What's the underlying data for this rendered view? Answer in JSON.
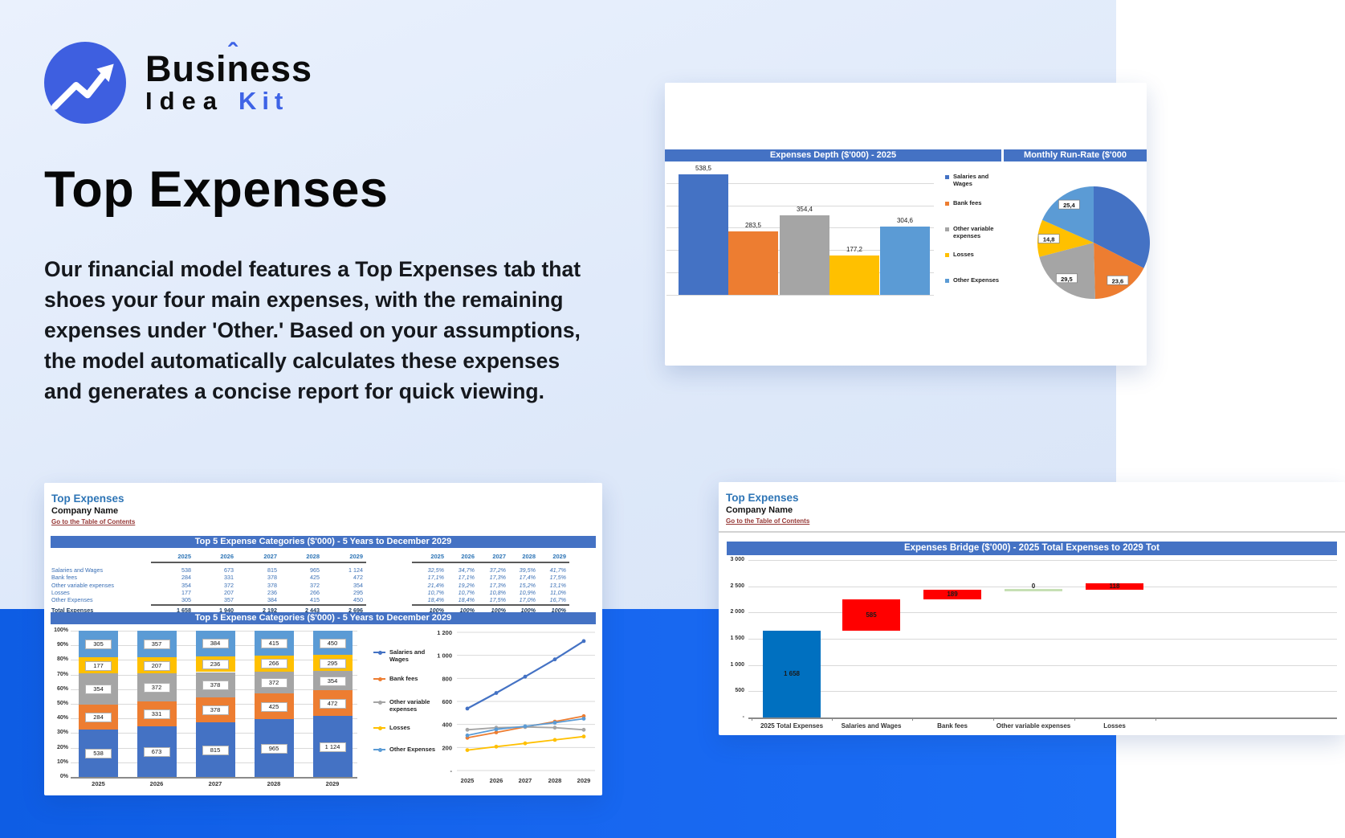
{
  "logo": {
    "brand_top": "Business",
    "caret": "ˆ",
    "brand_idea": "Idea",
    "brand_kit": "Kit"
  },
  "hero": {
    "title": "Top Expenses",
    "description": "Our financial model features a Top Expenses tab that shoes your four main expenses, with the remaining expenses under 'Other.' Based on your assumptions, the model automatically calculates these expenses and generates a concise report for quick viewing."
  },
  "colors": {
    "blue": "#4472C4",
    "orange": "#ED7D31",
    "gray": "#A5A5A5",
    "yellow": "#FFC000",
    "light_blue": "#5B9BD5",
    "red": "#FF0000",
    "bridge_blue": "#0070C0",
    "bridge_green": "#C6E0B4",
    "header_bar": "#4472C4",
    "accent_brand": "#3e63e6",
    "strip_blue": "#1766ef",
    "link_maroon": "#953735"
  },
  "cards": {
    "depth": {
      "title_left": "Expenses Depth ($'000) - 2025",
      "title_right": "Monthly Run-Rate ($'000"
    },
    "report": {
      "sheet_title": "Top Expenses",
      "company": "Company Name",
      "link": "Go to the Table of Contents",
      "table_title": "Top 5 Expense Categories ($'000) - 5 Years to December 2029",
      "chart_title": "Top 5 Expense Categories ($'000) - 5 Years to December 2029",
      "years": [
        "2025",
        "2026",
        "2027",
        "2028",
        "2029"
      ],
      "table": {
        "rows": [
          {
            "label": "Salaries and Wages",
            "values": [
              "538",
              "673",
              "815",
              "965",
              "1 124"
            ],
            "pct": [
              "32,5%",
              "34,7%",
              "37,2%",
              "39,5%",
              "41,7%"
            ]
          },
          {
            "label": "Bank fees",
            "values": [
              "284",
              "331",
              "378",
              "425",
              "472"
            ],
            "pct": [
              "17,1%",
              "17,1%",
              "17,3%",
              "17,4%",
              "17,5%"
            ]
          },
          {
            "label": "Other variable expenses",
            "values": [
              "354",
              "372",
              "378",
              "372",
              "354"
            ],
            "pct": [
              "21,4%",
              "19,2%",
              "17,3%",
              "15,2%",
              "13,1%"
            ]
          },
          {
            "label": "Losses",
            "values": [
              "177",
              "207",
              "236",
              "266",
              "295"
            ],
            "pct": [
              "10,7%",
              "10,7%",
              "10,8%",
              "10,9%",
              "11,0%"
            ]
          },
          {
            "label": "Other Expenses",
            "values": [
              "305",
              "357",
              "384",
              "415",
              "450"
            ],
            "pct": [
              "18,4%",
              "18,4%",
              "17,5%",
              "17,0%",
              "16,7%"
            ]
          }
        ],
        "total": {
          "label": "Total Expenses",
          "values": [
            "1 658",
            "1 940",
            "2 192",
            "2 443",
            "2 696"
          ],
          "pct": [
            "100%",
            "100%",
            "100%",
            "100%",
            "100%"
          ]
        }
      }
    },
    "bridge": {
      "sheet_title": "Top Expenses",
      "company": "Company Name",
      "link": "Go to the Table of Contents",
      "title": "Expenses Bridge ($'000) - 2025 Total Expenses to 2029 Tot"
    }
  },
  "chart_data": [
    {
      "id": "expenses_depth",
      "type": "bar",
      "title": "Expenses Depth ($'000) - 2025",
      "categories": [
        "Salaries and Wages",
        "Bank fees",
        "Other variable expenses",
        "Losses",
        "Other Expenses"
      ],
      "values": [
        538.5,
        283.5,
        354.4,
        177.2,
        304.6
      ],
      "labels": [
        "538,5",
        "283,5",
        "354,4",
        "177,2",
        "304,6"
      ],
      "colors": [
        "#4472C4",
        "#ED7D31",
        "#A5A5A5",
        "#FFC000",
        "#5B9BD5"
      ],
      "legend": [
        "Salaries and Wages",
        "Bank fees",
        "Other variable expenses",
        "Losses",
        "Other Expenses"
      ],
      "legend_position": "right",
      "grid": true,
      "ylim": [
        0,
        600
      ],
      "grid_step": 100
    },
    {
      "id": "monthly_run_rate",
      "type": "pie",
      "title": "Monthly Run-Rate ($'000",
      "slices": [
        {
          "name": "Salaries and Wages",
          "value": 44.9,
          "label": "",
          "color": "#4472C4"
        },
        {
          "name": "Bank fees",
          "value": 23.6,
          "label": "23,6",
          "color": "#ED7D31"
        },
        {
          "name": "Other variable expenses",
          "value": 29.5,
          "label": "29,5",
          "color": "#A5A5A5"
        },
        {
          "name": "Losses",
          "value": 14.8,
          "label": "14,8",
          "color": "#FFC000"
        },
        {
          "name": "Other Expenses",
          "value": 25.4,
          "label": "25,4",
          "color": "#5B9BD5"
        }
      ]
    },
    {
      "id": "top5_stacked",
      "type": "bar",
      "subtype": "stacked-100pct",
      "title": "Top 5 Expense Categories ($'000) - 5 Years to December 2029",
      "categories": [
        "2025",
        "2026",
        "2027",
        "2028",
        "2029"
      ],
      "series": [
        {
          "name": "Salaries and Wages",
          "color": "#4472C4",
          "values": [
            538,
            673,
            815,
            965,
            1124
          ],
          "labels": [
            "538",
            "673",
            "815",
            "965",
            "1 124"
          ]
        },
        {
          "name": "Bank fees",
          "color": "#ED7D31",
          "values": [
            284,
            331,
            378,
            425,
            472
          ],
          "labels": [
            "284",
            "331",
            "378",
            "425",
            "472"
          ]
        },
        {
          "name": "Other variable expenses",
          "color": "#A5A5A5",
          "values": [
            354,
            372,
            378,
            372,
            354
          ],
          "labels": [
            "354",
            "372",
            "378",
            "372",
            "354"
          ]
        },
        {
          "name": "Losses",
          "color": "#FFC000",
          "values": [
            177,
            207,
            236,
            266,
            295
          ],
          "labels": [
            "177",
            "207",
            "236",
            "266",
            "295"
          ]
        },
        {
          "name": "Other Expenses",
          "color": "#5B9BD5",
          "values": [
            305,
            357,
            384,
            415,
            450
          ],
          "labels": [
            "305",
            "357",
            "384",
            "415",
            "450"
          ]
        }
      ],
      "yticks": [
        "100%",
        "90%",
        "80%",
        "70%",
        "60%",
        "50%",
        "40%",
        "30%",
        "20%",
        "10%",
        "0%"
      ],
      "legend": [
        "Salaries and Wages",
        "Bank fees",
        "Other variable expenses",
        "Losses",
        "Other Expenses"
      ],
      "legend_position": "right",
      "grid": true
    },
    {
      "id": "top5_lines",
      "type": "line",
      "x": [
        "2025",
        "2026",
        "2027",
        "2028",
        "2029"
      ],
      "series": [
        {
          "name": "Salaries and Wages",
          "color": "#4472C4",
          "values": [
            538,
            673,
            815,
            965,
            1124
          ]
        },
        {
          "name": "Bank fees",
          "color": "#ED7D31",
          "values": [
            284,
            331,
            378,
            425,
            472
          ]
        },
        {
          "name": "Other variable expenses",
          "color": "#A5A5A5",
          "values": [
            354,
            372,
            378,
            372,
            354
          ]
        },
        {
          "name": "Losses",
          "color": "#FFC000",
          "values": [
            177,
            207,
            236,
            266,
            295
          ]
        },
        {
          "name": "Other Expenses",
          "color": "#5B9BD5",
          "values": [
            305,
            357,
            384,
            415,
            450
          ]
        }
      ],
      "ylim": [
        0,
        1200
      ],
      "yticks": [
        "1 200",
        "1 000",
        "800",
        "600",
        "400",
        "200",
        "-"
      ],
      "grid": true
    },
    {
      "id": "expenses_bridge",
      "type": "bar",
      "subtype": "waterfall",
      "title": "Expenses Bridge ($'000) - 2025 Total Expenses to 2029 Tot",
      "categories": [
        "2025 Total Expenses",
        "Salaries and Wages",
        "Bank fees",
        "Other variable expenses",
        "Losses"
      ],
      "bars": [
        {
          "start": 0,
          "end": 1658,
          "label": "1 658",
          "kind": "base"
        },
        {
          "start": 1658,
          "end": 2243,
          "label": "585",
          "kind": "increase"
        },
        {
          "start": 2243,
          "end": 2432,
          "label": "189",
          "kind": "increase"
        },
        {
          "start": 2432,
          "end": 2432,
          "label": "0",
          "kind": "flat"
        },
        {
          "start": 2432,
          "end": 2550,
          "label": "118",
          "kind": "increase"
        }
      ],
      "ylim": [
        0,
        3000
      ],
      "yticks": [
        "3 000",
        "2 500",
        "2 000",
        "1 500",
        "1 000",
        "500",
        "-"
      ],
      "grid": true
    }
  ]
}
